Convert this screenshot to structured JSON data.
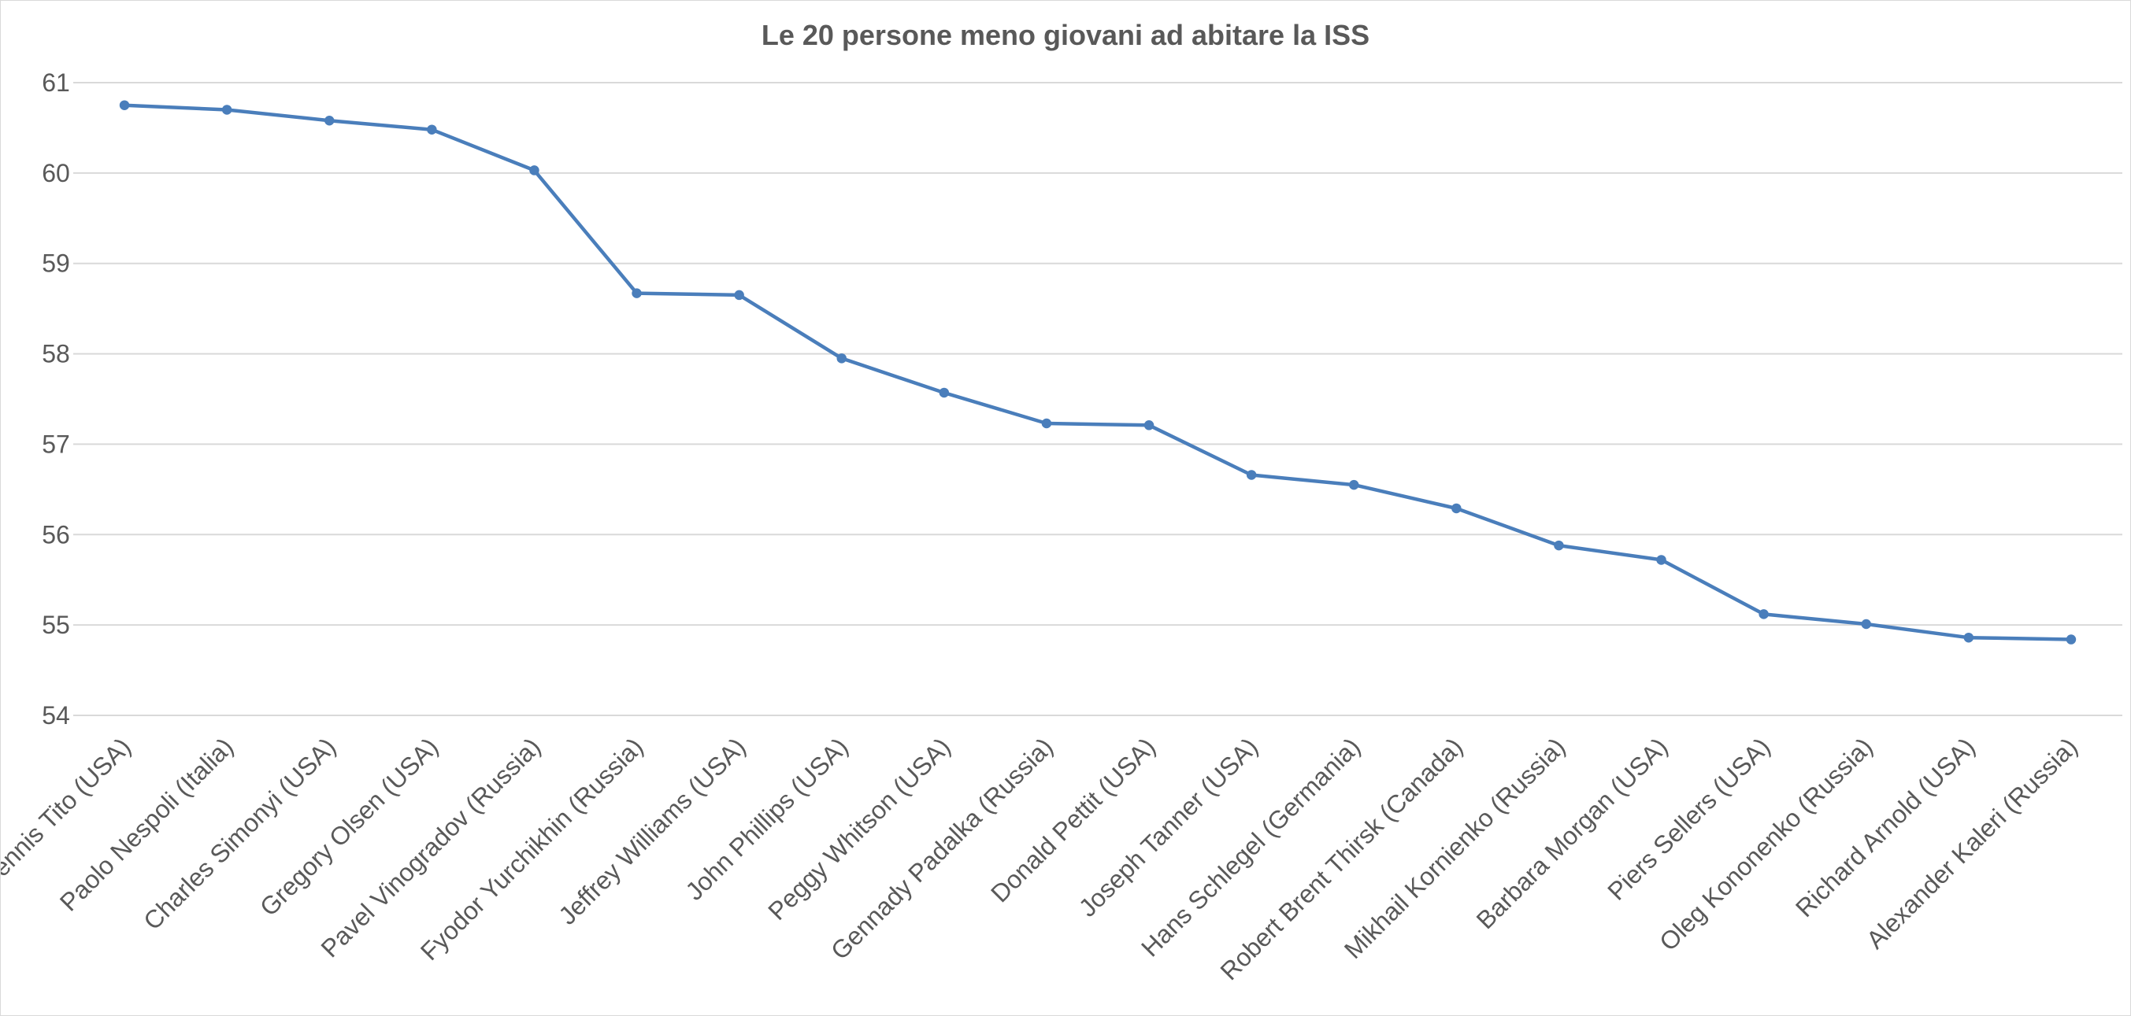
{
  "chart_data": {
    "type": "line",
    "title": "Le 20 persone meno giovani ad abitare la ISS",
    "xlabel": "",
    "ylabel": "",
    "ylim": [
      54,
      61
    ],
    "yticks": [
      "54",
      "55",
      "56",
      "57",
      "58",
      "59",
      "60",
      "61"
    ],
    "grid": true,
    "legend": "none",
    "series_color": "#4a7ebb",
    "categories": [
      "Dennis Tito (USA)",
      "Paolo Nespoli (Italia)",
      "Charles Simonyi (USA)",
      "Gregory Olsen (USA)",
      "Pavel Vinogradov (Russia)",
      "Fyodor Yurchikhin (Russia)",
      "Jeffrey Williams (USA)",
      "John Phillips (USA)",
      "Peggy Whitson (USA)",
      "Gennady Padalka (Russia)",
      "Donald Pettit (USA)",
      "Joseph Tanner (USA)",
      "Hans Schlegel (Germania)",
      "Robert Brent Thirsk (Canada)",
      "Mikhail Kornienko (Russia)",
      "Barbara Morgan (USA)",
      "Piers Sellers (USA)",
      "Oleg Kononenko (Russia)",
      "Richard Arnold (USA)",
      "Alexander Kaleri (Russia)"
    ],
    "series": [
      {
        "values": [
          60.75,
          60.7,
          60.58,
          60.48,
          60.03,
          58.67,
          58.65,
          57.95,
          57.57,
          57.23,
          57.21,
          56.66,
          56.55,
          56.29,
          55.88,
          55.72,
          55.12,
          55.01,
          54.86,
          54.84
        ]
      }
    ]
  }
}
